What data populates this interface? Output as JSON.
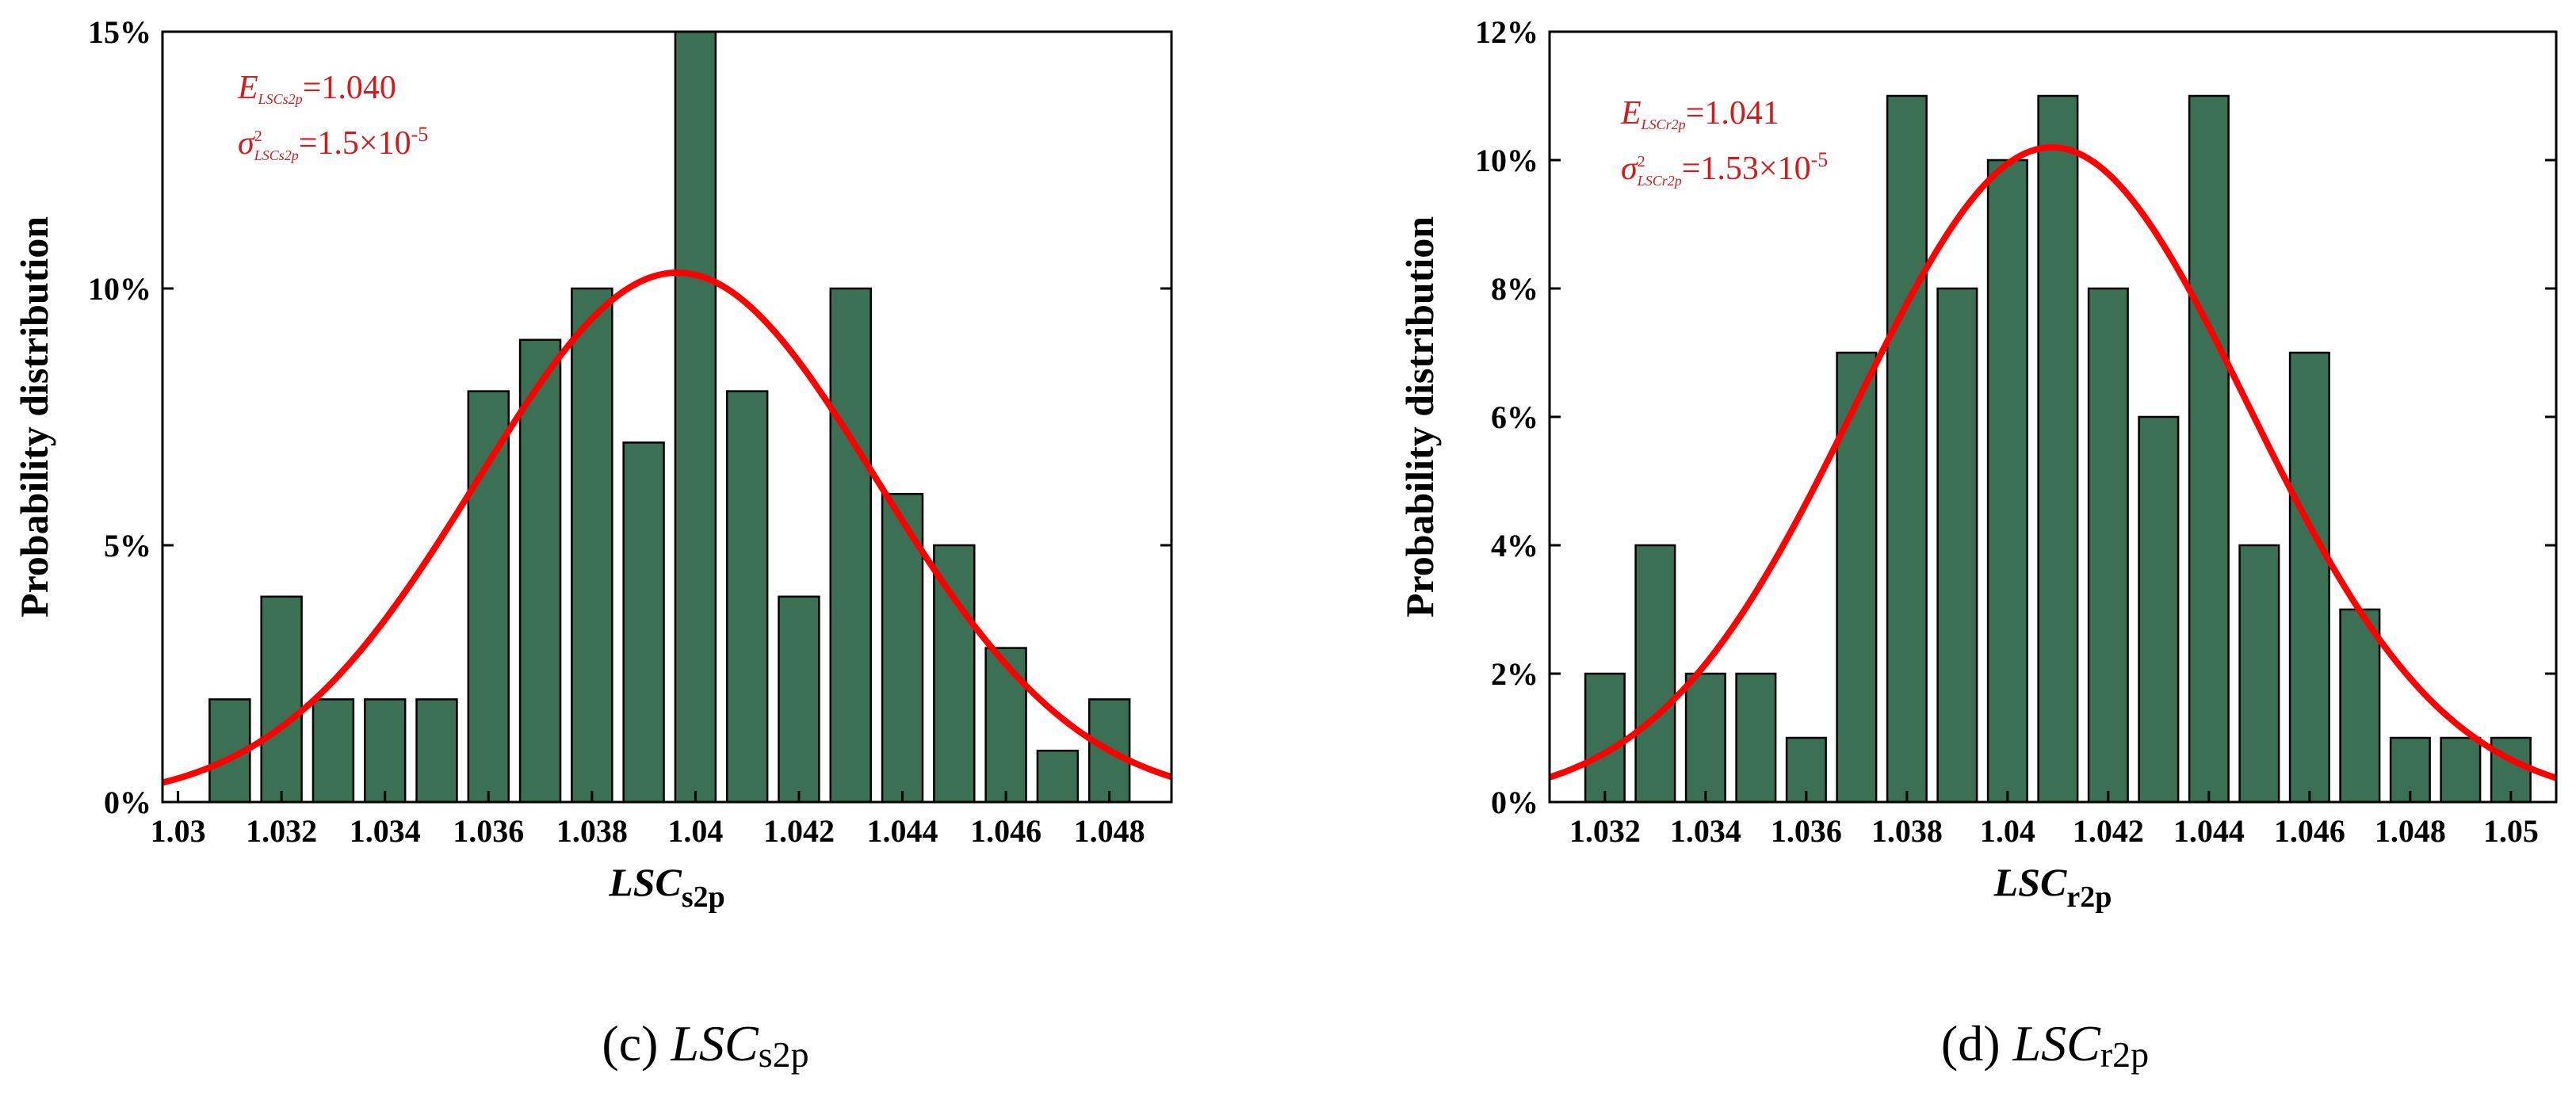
{
  "chart_data": [
    {
      "type": "bar",
      "panel": "c",
      "xlabel_main": "LSC",
      "xlabel_sub": "s2p",
      "ylabel": "Probability distribution",
      "xlim": [
        1.0297,
        1.0492
      ],
      "ylim": [
        0,
        15
      ],
      "xticks": [
        1.03,
        1.032,
        1.034,
        1.036,
        1.038,
        1.04,
        1.042,
        1.044,
        1.046,
        1.048
      ],
      "xtick_labels": [
        "1.03",
        "1.032",
        "1.034",
        "1.036",
        "1.038",
        "1.04",
        "1.042",
        "1.044",
        "1.046",
        "1.048"
      ],
      "yticks": [
        0,
        5,
        10,
        15
      ],
      "ytick_labels": [
        "0%",
        "5%",
        "10%",
        "15%"
      ],
      "bin_width": 0.001,
      "categories": [
        1.031,
        1.032,
        1.033,
        1.034,
        1.035,
        1.036,
        1.037,
        1.038,
        1.039,
        1.04,
        1.041,
        1.042,
        1.043,
        1.044,
        1.045,
        1.046,
        1.047,
        1.048
      ],
      "values": [
        2,
        4,
        2,
        2,
        2,
        8,
        9,
        10,
        7,
        15,
        8,
        4,
        10,
        6,
        5,
        3,
        1,
        2
      ],
      "fit": {
        "type": "normal",
        "mean": 1.03965,
        "sd": 0.00387,
        "scale": 0.001
      },
      "annotation": {
        "line1": {
          "symbol": "E",
          "sub": "LSCs2p",
          "text": "=1.040"
        },
        "line2": {
          "symbol": "σ",
          "sup": "2",
          "sub": "LSCs2p",
          "text": "=1.5×10",
          "exp": "-5"
        }
      },
      "caption": {
        "letter": "(c)",
        "main": "LSC",
        "sub": "s2p"
      }
    },
    {
      "type": "bar",
      "panel": "d",
      "xlabel_main": "LSC",
      "xlabel_sub": "r2p",
      "ylabel": "Probability distribution",
      "xlim": [
        1.0309,
        1.0509
      ],
      "ylim": [
        0,
        12
      ],
      "xticks": [
        1.032,
        1.034,
        1.036,
        1.038,
        1.04,
        1.042,
        1.044,
        1.046,
        1.048,
        1.05
      ],
      "xtick_labels": [
        "1.032",
        "1.034",
        "1.036",
        "1.038",
        "1.04",
        "1.042",
        "1.044",
        "1.046",
        "1.048",
        "1.05"
      ],
      "yticks": [
        0,
        2,
        4,
        6,
        8,
        10,
        12
      ],
      "ytick_labels": [
        "0%",
        "2%",
        "4%",
        "6%",
        "8%",
        "10%",
        "12%"
      ],
      "bin_width": 0.001,
      "categories": [
        1.032,
        1.033,
        1.034,
        1.035,
        1.036,
        1.037,
        1.038,
        1.039,
        1.04,
        1.041,
        1.042,
        1.043,
        1.044,
        1.045,
        1.046,
        1.047,
        1.048,
        1.049,
        1.05
      ],
      "values": [
        2,
        4,
        2,
        2,
        1,
        7,
        11,
        8,
        10,
        11,
        8,
        6,
        11,
        4,
        7,
        3,
        1,
        1,
        1
      ],
      "fit": {
        "type": "normal",
        "mean": 1.04088,
        "sd": 0.0039,
        "scale": 0.000997
      },
      "annotation": {
        "line1": {
          "symbol": "E",
          "sub": "LSCr2p",
          "text": "=1.041"
        },
        "line2": {
          "symbol": "σ",
          "sup": "2",
          "sub": "LSCr2p",
          "text": "=1.53×10",
          "exp": "-5"
        }
      },
      "caption": {
        "letter": "(d)",
        "main": "LSC",
        "sub": "r2p"
      }
    }
  ]
}
